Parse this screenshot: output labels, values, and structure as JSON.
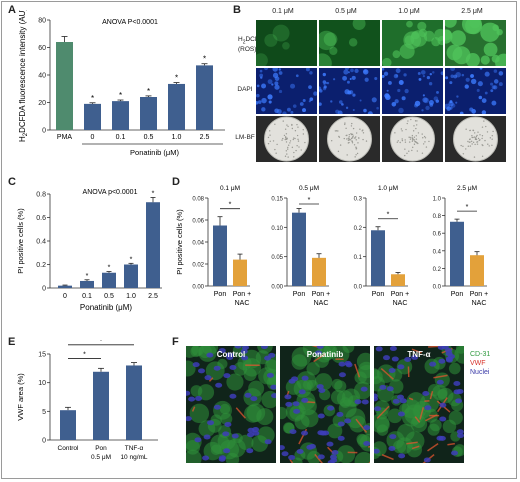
{
  "panels": {
    "a": "A",
    "b": "B",
    "c": "C",
    "d": "D",
    "e": "E",
    "f": "F"
  },
  "chart_data": [
    {
      "id": "A",
      "type": "bar",
      "categories": [
        "PMA",
        "0",
        "0.1",
        "0.5",
        "1.0",
        "2.5"
      ],
      "values": [
        64,
        19,
        21,
        24,
        33.5,
        47
      ],
      "errors": [
        4,
        0.8,
        0.8,
        0.8,
        1.0,
        1.2
      ],
      "significant": [
        false,
        true,
        true,
        true,
        true,
        true
      ],
      "bar_colors": [
        "#4f8b6e",
        "#3f5f8f",
        "#3f5f8f",
        "#3f5f8f",
        "#3f5f8f",
        "#3f5f8f"
      ],
      "ylabel_main": "H",
      "ylabel_sub": "2",
      "ylabel_rest": "DCFDA fluorescence intensity (AU)",
      "ylim": [
        0,
        80
      ],
      "yticks": [
        "0",
        "20",
        "40",
        "60",
        "80"
      ],
      "group_label": "Ponatinib (μM)",
      "annotation": "ANOVA P<0.0001",
      "star": "*"
    },
    {
      "id": "C",
      "type": "bar",
      "categories": [
        "0",
        "0.1",
        "0.5",
        "1.0",
        "2.5"
      ],
      "values": [
        0.02,
        0.06,
        0.13,
        0.2,
        0.73
      ],
      "errors": [
        0.005,
        0.01,
        0.01,
        0.01,
        0.04
      ],
      "significant": [
        false,
        true,
        true,
        true,
        true
      ],
      "bar_color": "#3f5f8f",
      "ylabel": "PI positive cells (%)",
      "xlabel": "Ponatinib (μM)",
      "ylim": [
        0,
        0.8
      ],
      "yticks": [
        "0",
        "0.2",
        "0.4",
        "0.6",
        "0.8"
      ],
      "annotation": "ANOVA p<0.0001",
      "star": "*"
    },
    {
      "id": "D",
      "type": "bar",
      "ylabel": "PI positive cells (%)",
      "categories": [
        "Pon",
        "Pon +",
        "NAC"
      ],
      "colors": [
        "#3f5f8f",
        "#e3a13a"
      ],
      "subplots": [
        {
          "title": "0.1 μM",
          "values": [
            0.055,
            0.024
          ],
          "errors": [
            0.008,
            0.005
          ],
          "ylim": [
            0,
            0.08
          ],
          "yticks": [
            "0.00",
            "0.02",
            "0.04",
            "0.06",
            "0.08"
          ]
        },
        {
          "title": "0.5 μM",
          "values": [
            0.125,
            0.048
          ],
          "errors": [
            0.007,
            0.007
          ],
          "ylim": [
            0,
            0.15
          ],
          "yticks": [
            "0.00",
            "0.05",
            "0.10",
            "0.15"
          ]
        },
        {
          "title": "1.0 μM",
          "values": [
            0.19,
            0.04
          ],
          "errors": [
            0.012,
            0.006
          ],
          "ylim": [
            0,
            0.3
          ],
          "yticks": [
            "0.0",
            "0.1",
            "0.2",
            "0.3"
          ]
        },
        {
          "title": "2.5 μM",
          "values": [
            0.73,
            0.35
          ],
          "errors": [
            0.03,
            0.04
          ],
          "ylim": [
            0,
            1.0
          ],
          "yticks": [
            "0.0",
            "0.2",
            "0.4",
            "0.6",
            "0.8",
            "1.0"
          ]
        }
      ],
      "star": "*"
    },
    {
      "id": "E",
      "type": "bar",
      "categories": [
        "Control",
        "Pon",
        "TNF-α"
      ],
      "sublabels": [
        "",
        "0.5 μM",
        "10 ng/mL"
      ],
      "values": [
        5.2,
        11.9,
        13
      ],
      "errors": [
        0.5,
        0.6,
        0.5
      ],
      "bar_color": "#3f5f8f",
      "ylabel": "VWF area (%)",
      "ylim": [
        0,
        15
      ],
      "yticks": [
        "0",
        "5",
        "10",
        "15"
      ],
      "star": "*"
    }
  ],
  "panel_b": {
    "columns": [
      "0.1 μM",
      "0.5 μM",
      "1.0 μM",
      "2.5 μM"
    ],
    "rows": [
      {
        "label_main": "H",
        "label_sub": "2",
        "label_rest": "DCFDA",
        "label_line2": "(ROS)"
      },
      {
        "label_main": "DAPI"
      },
      {
        "label_main": "LM-BF"
      }
    ],
    "colors": {
      "ros": "#1f7a2e",
      "dapi": "#1b3fae",
      "bf": "#e8e8e2"
    }
  },
  "panel_f": {
    "labels": [
      "Control",
      "Ponatinib",
      "TNF-α"
    ],
    "legend": [
      {
        "text": "CD-31",
        "color": "#2e9a3e"
      },
      {
        "text": "VWF",
        "color": "#d8332b"
      },
      {
        "text": "Nuclei",
        "color": "#3a3aa8"
      }
    ]
  }
}
